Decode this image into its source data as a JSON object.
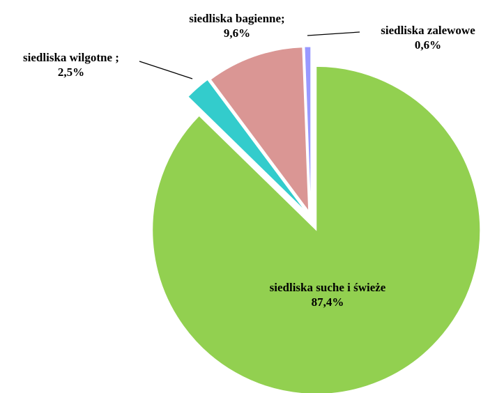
{
  "chart_data": {
    "type": "pie",
    "categories": [
      "siedliska suche i świeże",
      "siedliska wilgotne ;",
      "siedliska bagienne;",
      "siedliska zalewowe"
    ],
    "values": [
      87.4,
      2.5,
      9.6,
      0.6
    ],
    "value_labels": [
      "87,4%",
      "2,5%",
      "9,6%",
      "0,6%"
    ],
    "colors": [
      "#92d050",
      "#33cccc",
      "#da9694",
      "#9999ff"
    ]
  }
}
